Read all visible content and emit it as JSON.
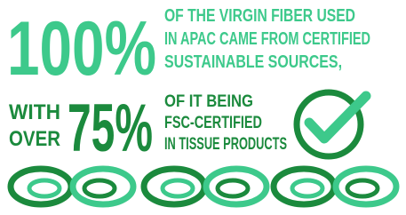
{
  "headline": {
    "percent": "100%",
    "lines": [
      "OF THE VIRGIN FIBER USED",
      "IN APAC CAME FROM CERTIFIED",
      "SUSTAINABLE SOURCES,"
    ]
  },
  "subline": {
    "lead": [
      "WITH",
      "OVER"
    ],
    "percent": "75%",
    "lines": [
      "OF IT BEING",
      "FSC-CERTIFIED",
      "IN TISSUE PRODUCTS"
    ]
  }
}
